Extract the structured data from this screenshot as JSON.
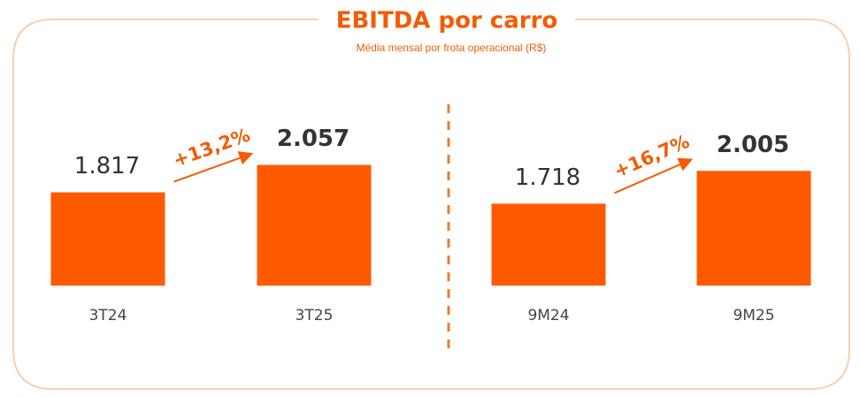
{
  "chart_data": {
    "type": "bar",
    "title": "EBITDA por carro",
    "subtitle": "Média mensal  por frota operacional (R$)",
    "categories": [
      "3T24",
      "3T25",
      "9M24",
      "9M25"
    ],
    "values": [
      1817,
      2057,
      1718,
      2005
    ],
    "value_labels": [
      "1.817",
      "2.057",
      "1.718",
      "2.005"
    ],
    "annotations": [
      "+13,2%",
      "+16,7%"
    ],
    "color": "#ff5a00",
    "ylim": [
      1000,
      2100
    ]
  }
}
